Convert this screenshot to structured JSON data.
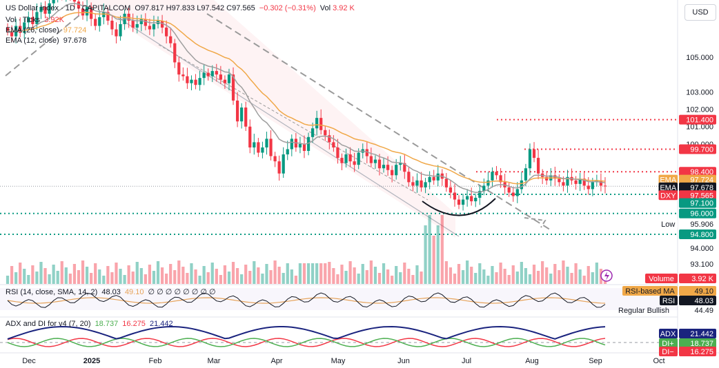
{
  "header": {
    "symbol": "US Dollar Index · 1D · CAPITALCOM",
    "ohlc": "O97.817 H97.833 L97.542 C97.565",
    "change": "−0.302 (−0.31%)",
    "vol_label": "Vol",
    "vol_value": "3.92 K",
    "vol_ticks": "Vol · Ticks",
    "vol_ticks_value": "3.92K",
    "ema26_label": "EMA (26, close)",
    "ema26_value": "97.724",
    "ema12_label": "EMA (12, close)",
    "ema12_value": "97.678",
    "rsi_label": "RSI (14, close, SMA, 14, 2)",
    "rsi_value": "48.03",
    "rsi_ma_value": "49.10",
    "rsi_placeholders": "∅ ∅ ∅ ∅ ∅ ∅ ∅ ∅",
    "adx_label": "ADX and DI for v4 (7, 20)",
    "adx_diplus": "18.737",
    "adx_diminus": "16.275",
    "adx_value": "21.442"
  },
  "currency_button": "USD",
  "colors": {
    "up": "#089981",
    "down": "#f23645",
    "ema26": "#f0a848",
    "ema12": "#9e9e9e",
    "level_red": "#f23645",
    "level_green": "#089981",
    "channel": "#b0b4bd",
    "rsi": "#131722",
    "rsi_ma": "#e6a35a",
    "adx": "#1a237e",
    "di_plus": "#4caf50",
    "di_minus": "#f23645"
  },
  "chart_data": {
    "type": "candlestick",
    "y_ticks": [
      "105.000",
      "103.000",
      "102.000",
      "101.000",
      "100.000",
      "94.000",
      "93.100"
    ],
    "x_ticks": [
      "Dec",
      "2025",
      "Feb",
      "Mar",
      "Apr",
      "May",
      "Jun",
      "Jul",
      "Aug",
      "Sep",
      "Oct"
    ],
    "price_labels": [
      {
        "label": "",
        "value": "101.400",
        "kind": "red"
      },
      {
        "label": "",
        "value": "99.700",
        "kind": "red"
      },
      {
        "label": "",
        "value": "98.400",
        "kind": "red"
      },
      {
        "label": "EMA",
        "value": "97.724",
        "kind": "orange"
      },
      {
        "label": "EMA",
        "value": "97.678",
        "kind": "black"
      },
      {
        "label": "DXY",
        "value": "97.565",
        "kind": "red"
      },
      {
        "label": "",
        "value": "97.100",
        "kind": "green"
      },
      {
        "label": "",
        "value": "96.000",
        "kind": "green"
      },
      {
        "label": "Low",
        "value": "95.906",
        "kind": "plain"
      },
      {
        "label": "",
        "value": "94.800",
        "kind": "green"
      },
      {
        "label": "Volume",
        "value": "3.92 K",
        "kind": "red"
      }
    ],
    "rsi_labels": [
      {
        "label": "RSI-based MA",
        "value": "49.10"
      },
      {
        "label": "RSI",
        "value": "48.03"
      },
      {
        "label": "Regular Bullish",
        "value": "44.49"
      }
    ],
    "adx_labels": [
      {
        "label": "ADX",
        "value": "21.442"
      },
      {
        "label": "DI+",
        "value": "18.737"
      },
      {
        "label": "DI−",
        "value": "16.275"
      }
    ],
    "closes": [
      106.5,
      106.2,
      106.8,
      106.4,
      107.0,
      107.3,
      106.9,
      107.6,
      107.9,
      107.5,
      108.1,
      108.4,
      108.9,
      108.6,
      109.1,
      108.5,
      108.2,
      107.8,
      107.4,
      107.9,
      107.2,
      106.8,
      107.3,
      107.6,
      107.1,
      106.6,
      106.2,
      106.9,
      107.5,
      107.1,
      106.7,
      106.9,
      107.2,
      106.8,
      106.6,
      106.9,
      107.1,
      106.7,
      106.2,
      105.8,
      104.7,
      104.0,
      103.9,
      103.5,
      103.7,
      103.4,
      103.8,
      104.1,
      103.9,
      104.2,
      104.0,
      103.7,
      103.5,
      104.0,
      102.5,
      101.3,
      102.1,
      101.0,
      99.8,
      100.1,
      99.5,
      99.8,
      100.3,
      99.3,
      99.0,
      98.3,
      99.4,
      99.7,
      100.3,
      99.8,
      100.0,
      99.6,
      100.4,
      100.9,
      101.5,
      100.8,
      100.5,
      100.1,
      99.8,
      99.2,
      98.9,
      99.4,
      99.0,
      98.8,
      99.5,
      99.7,
      99.3,
      98.9,
      99.1,
      98.6,
      98.8,
      98.5,
      98.2,
      98.8,
      98.9,
      98.4,
      97.8,
      97.6,
      97.9,
      97.5,
      97.8,
      98.1,
      97.9,
      98.3,
      98.0,
      97.5,
      97.2,
      96.8,
      96.5,
      96.8,
      97.0,
      96.7,
      96.9,
      97.3,
      97.6,
      97.9,
      98.4,
      98.2,
      97.8,
      97.5,
      97.2,
      97.0,
      97.4,
      97.9,
      98.6,
      99.7,
      99.2,
      98.3,
      98.1,
      97.9,
      98.2,
      98.0,
      97.8,
      97.6,
      98.1,
      97.9,
      97.7,
      98.0,
      97.6,
      97.4,
      97.8,
      97.9,
      97.6,
      97.565
    ],
    "volume_note": "daily tick volume bars, last value 3.92K"
  }
}
